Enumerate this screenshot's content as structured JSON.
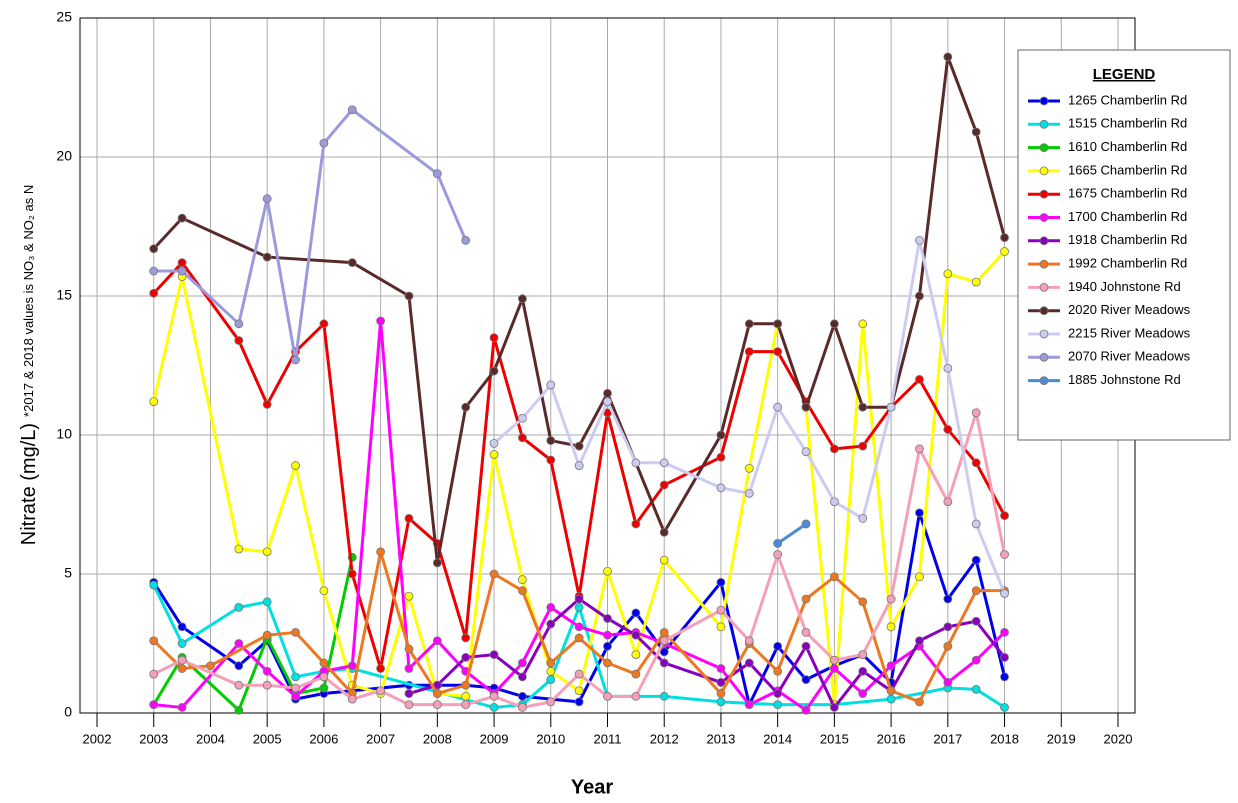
{
  "chart_data": {
    "type": "line",
    "xlabel": "Year",
    "ylabel": "Nitrate (mg/L)",
    "ylabel_note": "*2017 & 2018 values is NO₃ & NO₂ as N",
    "legend_title": "LEGEND",
    "legend": "upper right",
    "grid": true,
    "xlim": [
      2001.7,
      2020.3
    ],
    "xticks": [
      2002,
      2003,
      2004,
      2005,
      2006,
      2007,
      2008,
      2009,
      2010,
      2011,
      2012,
      2013,
      2014,
      2015,
      2016,
      2017,
      2018,
      2019,
      2020
    ],
    "ylim": [
      0,
      25
    ],
    "yticks": [
      0,
      5,
      10,
      15,
      20,
      25
    ],
    "series": [
      {
        "name": "1265 Chamberlin Rd",
        "color": "#0000ee",
        "x": [
          2003,
          2003.5,
          2004.5,
          2005,
          2005.5,
          2006,
          2007.5,
          2008,
          2008.5,
          2009,
          2009.5,
          2010.5,
          2011,
          2011.5,
          2012,
          2013,
          2013.5,
          2014,
          2014.5,
          2015,
          2015.5,
          2016,
          2016.5,
          2017,
          2017.5,
          2018
        ],
        "values": [
          4.7,
          3.1,
          1.7,
          2.6,
          0.5,
          0.7,
          1.0,
          1.0,
          1.0,
          0.9,
          0.6,
          0.4,
          2.4,
          3.6,
          2.2,
          4.7,
          0.3,
          2.4,
          1.2,
          1.7,
          2.1,
          1.1,
          7.2,
          4.1,
          5.5,
          1.3
        ]
      },
      {
        "name": "1515 Chamberlin Rd",
        "color": "#00e0e0",
        "x": [
          2003,
          2003.5,
          2004.5,
          2005,
          2005.5,
          2006,
          2006.5,
          2009,
          2009.5,
          2010,
          2010.5,
          2011,
          2012,
          2013,
          2014,
          2015,
          2016,
          2017,
          2017.5,
          2018
        ],
        "values": [
          4.6,
          2.5,
          3.8,
          4.0,
          1.3,
          1.5,
          1.6,
          0.2,
          0.3,
          1.2,
          3.8,
          0.6,
          0.6,
          0.4,
          0.3,
          0.3,
          0.5,
          0.9,
          0.85,
          0.2
        ]
      },
      {
        "name": "1610 Chamberlin Rd",
        "color": "#00cc00",
        "x": [
          2003,
          2003.5,
          2004.5,
          2005,
          2005.5,
          2006,
          2006.5
        ],
        "values": [
          0.3,
          2.0,
          0.1,
          2.7,
          0.7,
          0.9,
          5.6
        ]
      },
      {
        "name": "1665 Chamberlin Rd",
        "color": "#ffff00",
        "x": [
          2003,
          2003.5,
          2004.5,
          2005,
          2005.5,
          2006,
          2006.5,
          2007,
          2007.5,
          2008,
          2008.5,
          2009,
          2009.5,
          2010,
          2010.5,
          2011,
          2011.5,
          2012,
          2013,
          2013.5,
          2014,
          2014.5,
          2015,
          2015.5,
          2016,
          2016.5,
          2017,
          2017.5,
          2018
        ],
        "values": [
          11.2,
          15.7,
          5.9,
          5.8,
          8.9,
          4.4,
          1.0,
          0.7,
          4.2,
          0.7,
          0.6,
          9.3,
          4.8,
          1.5,
          0.8,
          5.1,
          2.1,
          5.5,
          3.1,
          8.8,
          14.0,
          11.0,
          0.3,
          14.0,
          3.1,
          4.9,
          15.8,
          15.5,
          16.6
        ]
      },
      {
        "name": "1675 Chamberlin Rd",
        "color": "#ee0000",
        "x": [
          2003,
          2003.5,
          2004.5,
          2005,
          2005.5,
          2006,
          2006.5,
          2007,
          2007.5,
          2008,
          2008.5,
          2009,
          2009.5,
          2010,
          2010.5,
          2011,
          2011.5,
          2012,
          2013,
          2013.5,
          2014,
          2014.5,
          2015,
          2015.5,
          2016,
          2016.5,
          2017,
          2017.5,
          2018
        ],
        "values": [
          15.1,
          16.2,
          13.4,
          11.1,
          13.0,
          14.0,
          5.0,
          1.6,
          7.0,
          6.1,
          2.7,
          13.5,
          9.9,
          9.1,
          4.2,
          10.8,
          6.8,
          8.2,
          9.2,
          13.0,
          13.0,
          11.2,
          9.5,
          9.6,
          11.0,
          12.0,
          10.2,
          9.0,
          7.1
        ]
      },
      {
        "name": "1700 Chamberlin Rd",
        "color": "#ff00ff",
        "x": [
          2003,
          2003.5,
          2004.5,
          2005,
          2005.5,
          2006,
          2006.5,
          2007,
          2007.5,
          2008,
          2008.5,
          2009,
          2009.5,
          2010,
          2010.5,
          2011,
          2011.5,
          2012,
          2013,
          2013.5,
          2014,
          2014.5,
          2015,
          2015.5,
          2016,
          2016.5,
          2017,
          2017.5,
          2018
        ],
        "values": [
          0.3,
          0.2,
          2.5,
          1.5,
          0.6,
          1.5,
          1.7,
          14.1,
          1.6,
          2.6,
          1.5,
          0.7,
          1.8,
          3.8,
          3.1,
          2.8,
          2.9,
          2.5,
          1.6,
          0.3,
          0.8,
          0.1,
          1.6,
          0.7,
          1.7,
          2.4,
          1.1,
          1.9,
          2.9
        ]
      },
      {
        "name": "1918 Chamberlin Rd",
        "color": "#8800bb",
        "x": [
          2007.5,
          2008,
          2008.5,
          2009,
          2009.5,
          2010,
          2010.5,
          2011,
          2011.5,
          2012,
          2013,
          2013.5,
          2014,
          2014.5,
          2015,
          2015.5,
          2016,
          2016.5,
          2017,
          2017.5,
          2018
        ],
        "values": [
          0.7,
          1.0,
          2.0,
          2.1,
          1.3,
          3.2,
          4.1,
          3.4,
          2.8,
          1.8,
          1.1,
          1.8,
          0.7,
          2.4,
          0.2,
          1.5,
          0.8,
          2.6,
          3.1,
          3.3,
          2.0
        ]
      },
      {
        "name": "1992 Chamberlin Rd",
        "color": "#ee7722",
        "x": [
          2003,
          2003.5,
          2004,
          2005,
          2005.5,
          2006,
          2006.5,
          2007,
          2007.5,
          2008,
          2008.5,
          2009,
          2009.5,
          2010,
          2010.5,
          2011,
          2011.5,
          2012,
          2013,
          2013.5,
          2014,
          2014.5,
          2015,
          2015.5,
          2016,
          2016.5,
          2017,
          2017.5,
          2018
        ],
        "values": [
          2.6,
          1.6,
          1.7,
          2.8,
          2.9,
          1.8,
          0.7,
          5.8,
          2.3,
          0.7,
          1.0,
          5.0,
          4.4,
          1.8,
          2.7,
          1.8,
          1.4,
          2.9,
          0.7,
          2.5,
          1.5,
          4.1,
          4.9,
          4.0,
          0.8,
          0.4,
          2.4,
          4.4,
          4.4
        ]
      },
      {
        "name": "1940 Johnstone Rd",
        "color": "#f5a0b8",
        "x": [
          2003,
          2003.5,
          2004.5,
          2005,
          2005.5,
          2006,
          2006.5,
          2007,
          2007.5,
          2008,
          2008.5,
          2009,
          2009.5,
          2010,
          2010.5,
          2011,
          2011.5,
          2012,
          2013,
          2013.5,
          2014,
          2014.5,
          2015,
          2015.5,
          2016,
          2016.5,
          2017,
          2017.5,
          2018
        ],
        "values": [
          1.4,
          1.9,
          1.0,
          1.0,
          0.9,
          1.3,
          0.5,
          0.8,
          0.3,
          0.3,
          0.3,
          0.6,
          0.2,
          0.4,
          1.4,
          0.6,
          0.6,
          2.6,
          3.7,
          2.6,
          5.7,
          2.9,
          1.9,
          2.1,
          4.1,
          9.5,
          7.6,
          10.8,
          5.7
        ]
      },
      {
        "name": "2020 River Meadows",
        "color": "#5a2a2a",
        "x": [
          2003,
          2003.5,
          2005,
          2006.5,
          2007.5,
          2008,
          2008.5,
          2009,
          2009.5,
          2010,
          2010.5,
          2011,
          2012,
          2013,
          2013.5,
          2014,
          2014.5,
          2015,
          2015.5,
          2016,
          2016.5,
          2017,
          2017.5,
          2018
        ],
        "values": [
          16.7,
          17.8,
          16.4,
          16.2,
          15.0,
          5.4,
          11.0,
          12.3,
          14.9,
          9.8,
          9.6,
          11.5,
          6.5,
          10.0,
          14.0,
          14.0,
          11.0,
          14.0,
          11.0,
          11.0,
          15.0,
          23.6,
          20.9,
          17.1
        ]
      },
      {
        "name": "2215 River Meadows",
        "color": "#ccccf2",
        "x": [
          2009,
          2009.5,
          2010,
          2010.5,
          2011,
          2011.5,
          2012,
          2013,
          2013.5,
          2014,
          2014.5,
          2015,
          2015.5,
          2016,
          2016.5,
          2017,
          2017.5,
          2018
        ],
        "values": [
          9.7,
          10.6,
          11.8,
          8.9,
          11.2,
          9.0,
          9.0,
          8.1,
          7.9,
          11.0,
          9.4,
          7.6,
          7.0,
          11.0,
          17.0,
          12.4,
          6.8,
          4.3
        ]
      },
      {
        "name": "2070 River Meadows",
        "color": "#9a9add",
        "x": [
          2003,
          2003.5,
          2004.5,
          2005,
          2005.5,
          2006,
          2006.5,
          2008,
          2008.5
        ],
        "values": [
          15.9,
          15.9,
          14.0,
          18.5,
          12.7,
          20.5,
          21.7,
          19.4,
          17.0
        ]
      },
      {
        "name": "1885 Johnstone Rd",
        "color": "#4a8ad8",
        "x": [
          2014,
          2014.5
        ],
        "values": [
          6.1,
          6.8
        ]
      }
    ]
  }
}
